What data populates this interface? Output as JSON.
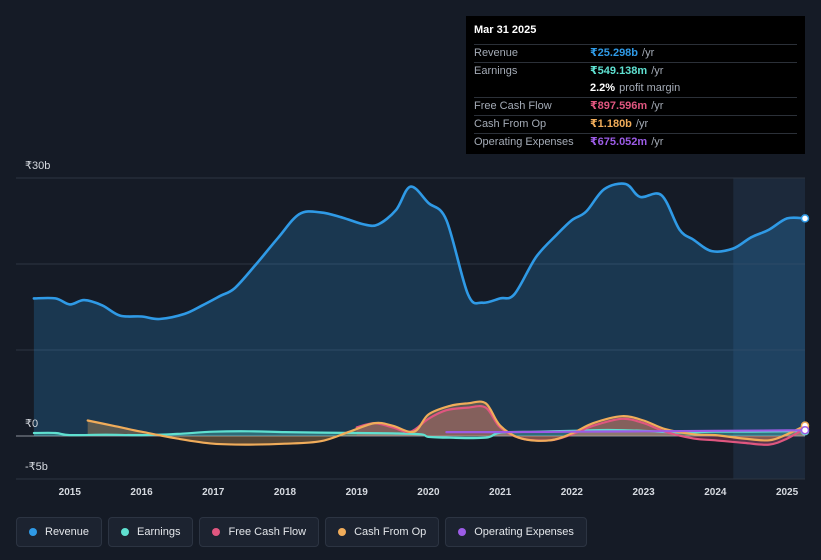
{
  "tooltip": {
    "date": "Mar 31 2025",
    "rows": [
      {
        "label": "Revenue",
        "value": "₹25.298b",
        "suffix": "/yr",
        "color": "#2f9ae6"
      },
      {
        "label": "Earnings",
        "value": "₹549.138m",
        "suffix": "/yr",
        "color": "#5fe0d0"
      },
      {
        "label": "",
        "value": "2.2%",
        "suffix": "profit margin",
        "color": "#ffffff"
      },
      {
        "label": "Free Cash Flow",
        "value": "₹897.596m",
        "suffix": "/yr",
        "color": "#e0567f"
      },
      {
        "label": "Cash From Op",
        "value": "₹1.180b",
        "suffix": "/yr",
        "color": "#f0ac5a"
      },
      {
        "label": "Operating Expenses",
        "value": "₹675.052m",
        "suffix": "/yr",
        "color": "#9c5ce6"
      }
    ]
  },
  "legend": [
    {
      "label": "Revenue",
      "color": "#2f9ae6"
    },
    {
      "label": "Earnings",
      "color": "#5fe0d0"
    },
    {
      "label": "Free Cash Flow",
      "color": "#e0567f"
    },
    {
      "label": "Cash From Op",
      "color": "#f0ac5a"
    },
    {
      "label": "Operating Expenses",
      "color": "#9c5ce6"
    }
  ],
  "chart_data": {
    "type": "area",
    "title": "",
    "xlabel": "",
    "ylabel": "",
    "ylim": [
      -5,
      30
    ],
    "y_ticks": [
      {
        "value": 30,
        "label": "₹30b"
      },
      {
        "value": 0,
        "label": "₹0"
      },
      {
        "value": -5,
        "label": "-₹5b"
      }
    ],
    "x_ticks": [
      "2015",
      "2016",
      "2017",
      "2018",
      "2019",
      "2020",
      "2021",
      "2022",
      "2023",
      "2024",
      "2025"
    ],
    "x_tick_values": [
      2015,
      2016,
      2017,
      2018,
      2019,
      2020,
      2021,
      2022,
      2023,
      2024,
      2025
    ],
    "xlim": [
      2014.25,
      2025.25
    ],
    "highlight_from": 2024.25,
    "series": [
      {
        "name": "Revenue",
        "color": "#2f9ae6",
        "fill": true,
        "x": [
          2014.5,
          2014.8,
          2015.0,
          2015.2,
          2015.45,
          2015.7,
          2016.0,
          2016.25,
          2016.6,
          2016.85,
          2017.1,
          2017.3,
          2017.6,
          2017.9,
          2018.2,
          2018.5,
          2018.8,
          2019.1,
          2019.3,
          2019.55,
          2019.75,
          2020.0,
          2020.25,
          2020.55,
          2020.75,
          2021.0,
          2021.2,
          2021.5,
          2021.8,
          2022.0,
          2022.2,
          2022.45,
          2022.75,
          2022.95,
          2023.25,
          2023.5,
          2023.7,
          2023.95,
          2024.25,
          2024.5,
          2024.75,
          2025.0,
          2025.25
        ],
        "y": [
          16,
          16,
          15.3,
          15.8,
          15.2,
          14,
          13.9,
          13.6,
          14.2,
          15.2,
          16.3,
          17.2,
          20,
          23,
          25.8,
          26,
          25.4,
          24.6,
          24.6,
          26.3,
          29,
          27.1,
          25.1,
          16.5,
          15.5,
          16,
          16.5,
          20.8,
          23.5,
          25.1,
          26.1,
          28.7,
          29.3,
          27.8,
          28,
          24,
          22.8,
          21.5,
          21.8,
          23.1,
          24,
          25.3,
          25.3
        ]
      },
      {
        "name": "Earnings",
        "color": "#5fe0d0",
        "fill": true,
        "x": [
          2014.5,
          2014.8,
          2015.0,
          2015.5,
          2016.0,
          2016.5,
          2017.0,
          2017.5,
          2018.0,
          2018.5,
          2019.0,
          2019.5,
          2019.9,
          2020.0,
          2020.3,
          2020.8,
          2021.0,
          2021.5,
          2022.0,
          2022.5,
          2023.0,
          2023.5,
          2024.0,
          2024.5,
          2025.0,
          2025.25
        ],
        "y": [
          0.35,
          0.35,
          0.1,
          0.15,
          0.1,
          0.25,
          0.5,
          0.55,
          0.45,
          0.4,
          0.35,
          0.3,
          0.2,
          -0.1,
          -0.2,
          -0.2,
          0.4,
          0.5,
          0.6,
          0.7,
          0.6,
          0.4,
          0.5,
          0.5,
          0.55,
          0.55
        ]
      },
      {
        "name": "Free Cash Flow",
        "color": "#e0567f",
        "fill": true,
        "x": [
          2019.0,
          2019.25,
          2019.5,
          2019.75,
          2020.0,
          2020.25,
          2020.55,
          2020.8,
          2021.0,
          2021.3,
          2021.7,
          2022.0,
          2022.3,
          2022.7,
          2023.0,
          2023.3,
          2023.7,
          2024.0,
          2024.4,
          2024.75,
          2025.0,
          2025.25
        ],
        "y": [
          1.0,
          1.5,
          1.0,
          0.5,
          2.0,
          3.0,
          3.3,
          3.3,
          1.0,
          -0.3,
          -0.5,
          0.2,
          1.2,
          2.0,
          1.5,
          0.5,
          -0.3,
          -0.5,
          -0.8,
          -1.0,
          -0.3,
          0.9
        ]
      },
      {
        "name": "Cash From Op",
        "color": "#f0ac5a",
        "fill": true,
        "x": [
          2015.25,
          2015.6,
          2016.0,
          2016.5,
          2017.0,
          2017.5,
          2018.0,
          2018.5,
          2018.9,
          2019.25,
          2019.5,
          2019.8,
          2020.0,
          2020.3,
          2020.55,
          2020.8,
          2021.0,
          2021.3,
          2021.7,
          2022.0,
          2022.3,
          2022.7,
          2023.0,
          2023.3,
          2023.7,
          2024.0,
          2024.4,
          2024.75,
          2025.0,
          2025.25
        ],
        "y": [
          1.8,
          1.2,
          0.5,
          -0.3,
          -0.9,
          -1.0,
          -0.9,
          -0.6,
          0.5,
          1.5,
          1.2,
          0.5,
          2.5,
          3.5,
          3.8,
          3.8,
          1.2,
          -0.3,
          -0.5,
          0.3,
          1.5,
          2.3,
          1.8,
          0.8,
          0.2,
          0.1,
          -0.3,
          -0.5,
          0.2,
          1.2
        ]
      },
      {
        "name": "Operating Expenses",
        "color": "#9c5ce6",
        "fill": false,
        "x": [
          2020.25,
          2021.0,
          2022.0,
          2023.0,
          2024.0,
          2025.0,
          2025.25
        ],
        "y": [
          0.45,
          0.45,
          0.5,
          0.55,
          0.6,
          0.65,
          0.67
        ]
      }
    ]
  }
}
